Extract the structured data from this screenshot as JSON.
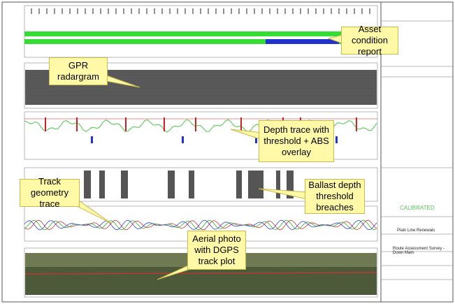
{
  "callouts": [
    "Asset condition report",
    "GPR radargram",
    "Depth trace with threshold + ABS overlay",
    "Track geometry trace",
    "Ballast depth threshold breaches",
    "Aerial photo with DGPS track plot"
  ],
  "title_block": {
    "status": "CALIBRATED",
    "project": "Plain Line Renewals",
    "drawing_title": "Route Assessment Survey - Down Main"
  }
}
